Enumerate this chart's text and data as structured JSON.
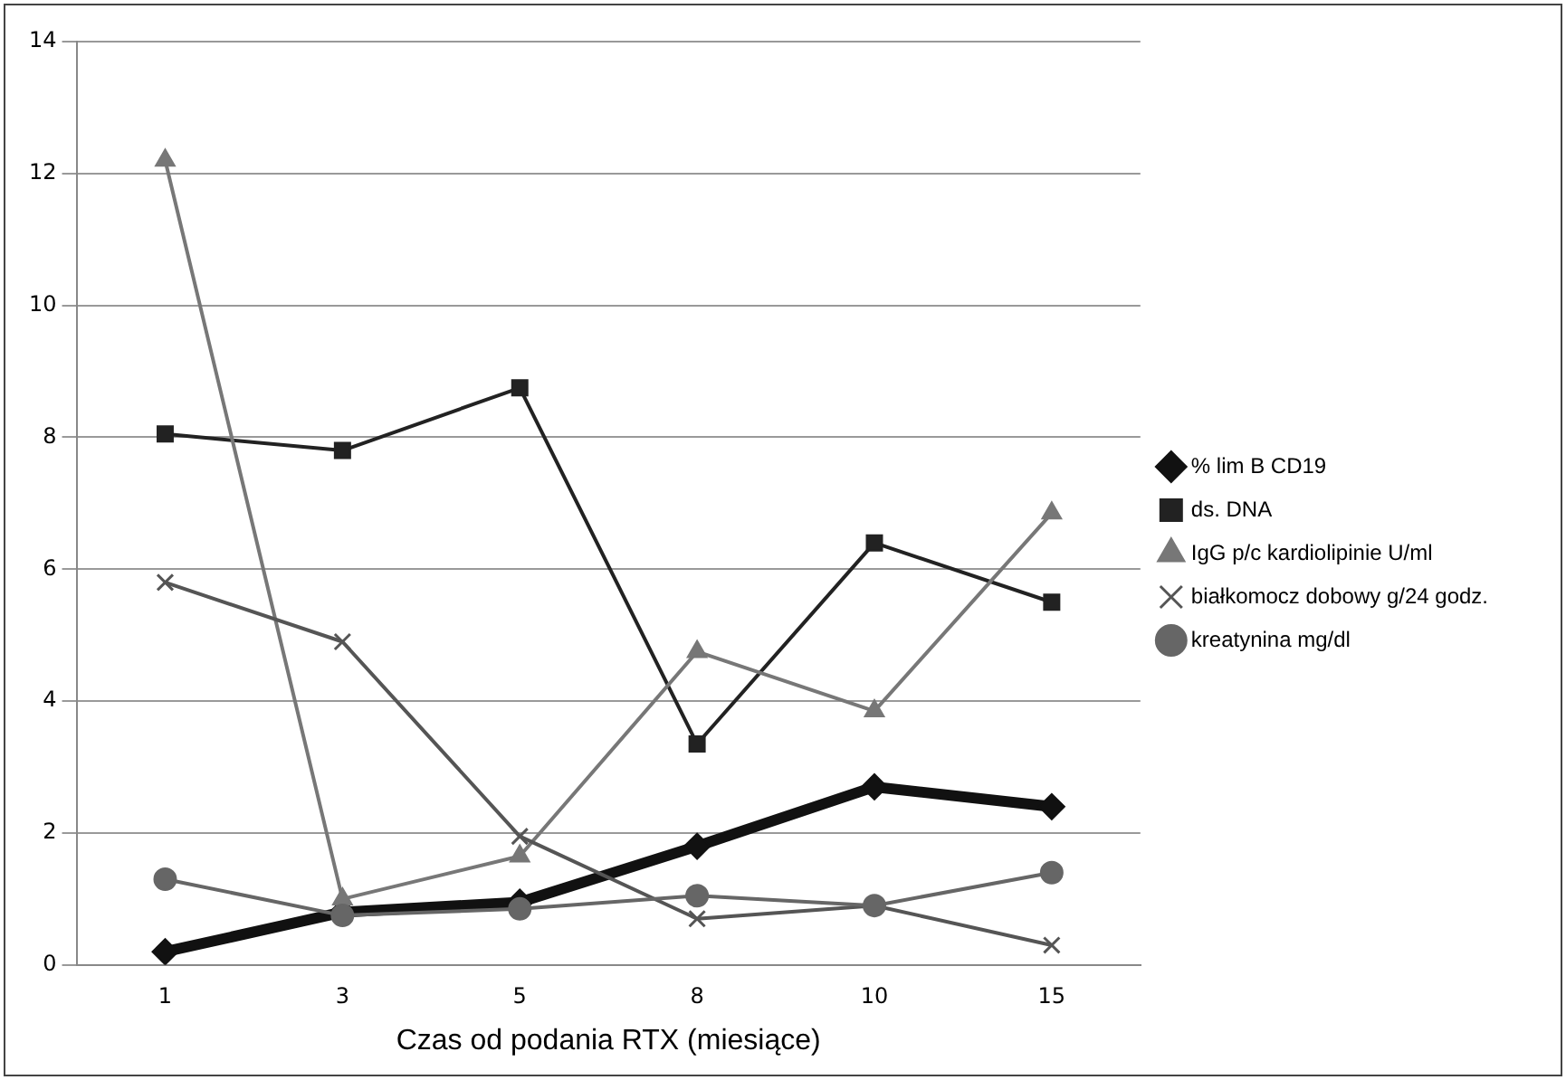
{
  "chart_data": {
    "type": "line",
    "xlabel": "Czas od podania RTX (miesiące)",
    "categories": [
      "1",
      "3",
      "5",
      "8",
      "10",
      "15"
    ],
    "ylim": [
      0,
      14
    ],
    "yticks": [
      0,
      2,
      4,
      6,
      8,
      10,
      12,
      14
    ],
    "grid": "y",
    "legend": "right",
    "line_style": "solid",
    "series": [
      {
        "name": "% lim B CD19",
        "color": "#111111",
        "marker": "diamond",
        "values": [
          0.2,
          0.8,
          0.95,
          1.8,
          2.7,
          2.4
        ]
      },
      {
        "name": "ds. DNA",
        "color": "#222222",
        "marker": "square",
        "values": [
          8.05,
          7.8,
          8.75,
          3.35,
          6.4,
          5.5
        ]
      },
      {
        "name": "IgG p/c kardiolipinie U/ml",
        "color": "#777777",
        "marker": "triangle",
        "values": [
          12.2,
          1.0,
          1.65,
          4.75,
          3.85,
          6.85
        ]
      },
      {
        "name": "białkomocz dobowy g/24 godz.",
        "color": "#555555",
        "marker": "cross",
        "values": [
          5.8,
          4.9,
          1.95,
          0.7,
          0.9,
          0.3
        ]
      },
      {
        "name": "kreatynina mg/dl",
        "color": "#666666",
        "marker": "circle",
        "values": [
          1.3,
          0.75,
          0.85,
          1.05,
          0.9,
          1.4
        ]
      }
    ]
  }
}
